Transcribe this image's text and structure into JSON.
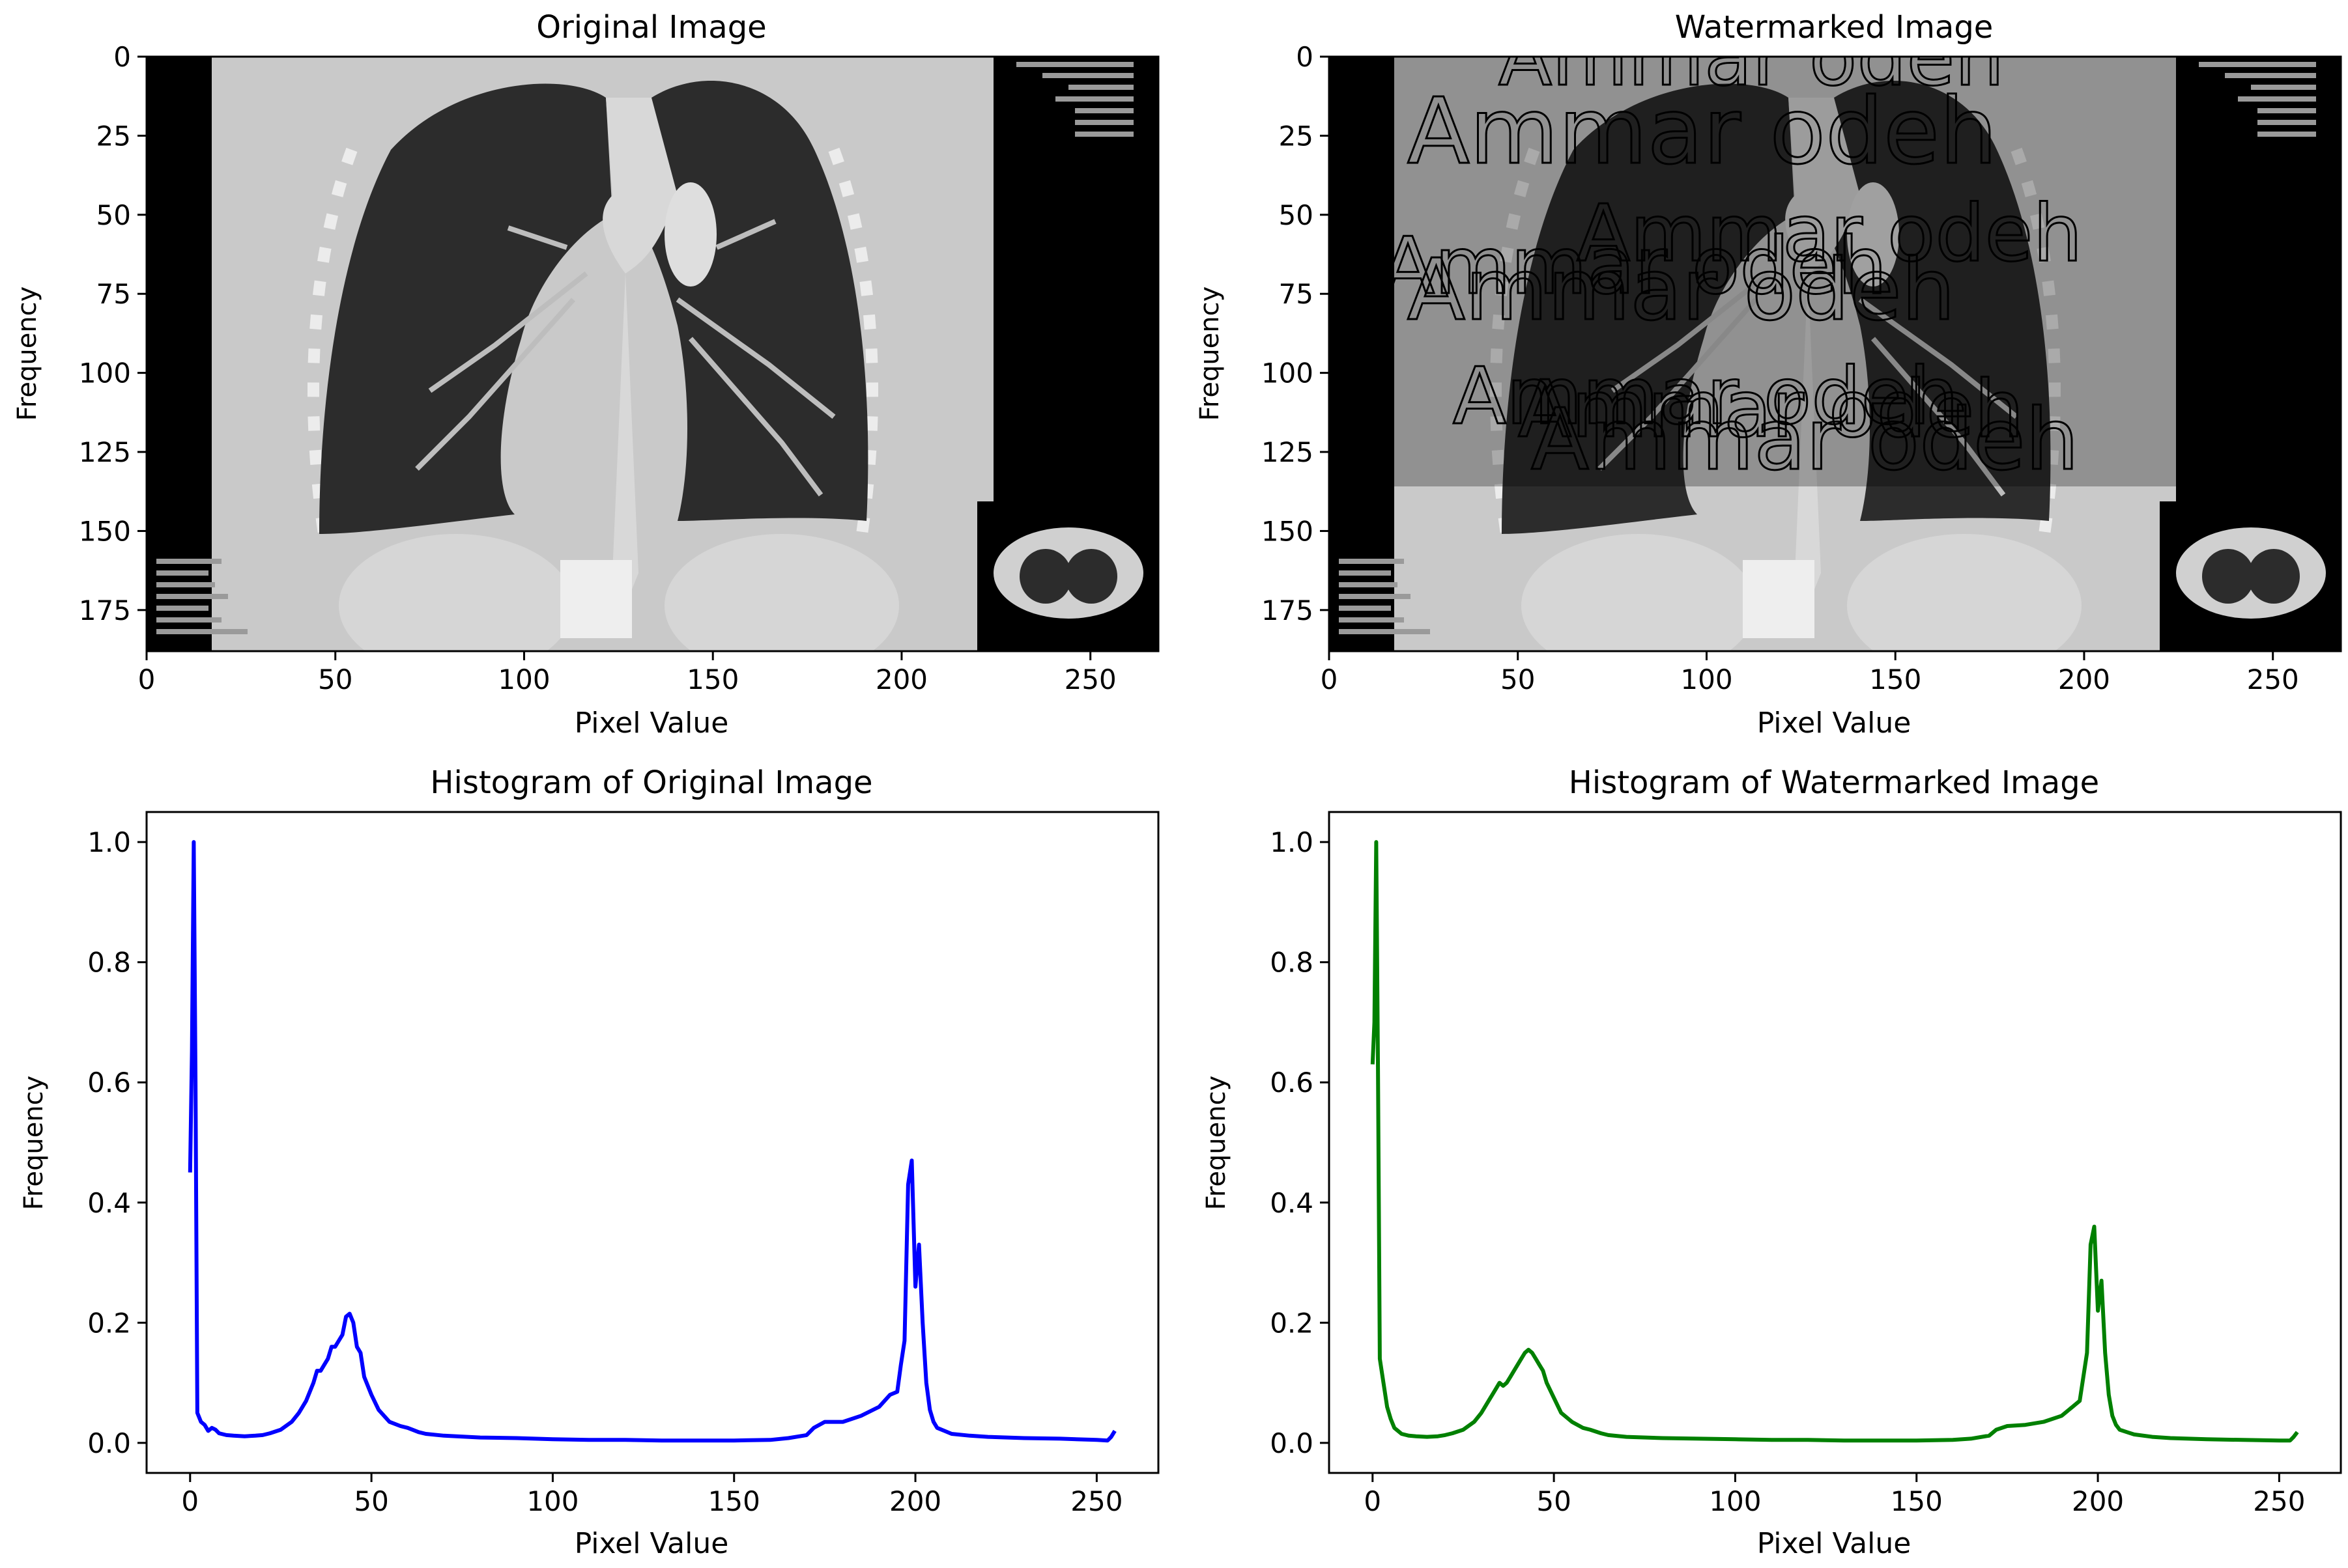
{
  "chart_data": [
    {
      "type": "image",
      "title": "Original Image",
      "xlabel": "Pixel Value",
      "ylabel": "Frequency",
      "xlim": [
        0,
        268
      ],
      "ylim": [
        188,
        0
      ],
      "xticks": [
        0,
        50,
        100,
        150,
        200,
        250
      ],
      "yticks": [
        0,
        25,
        50,
        75,
        100,
        125,
        150,
        175
      ],
      "watermark_text": ""
    },
    {
      "type": "image",
      "title": "Watermarked Image",
      "xlabel": "Pixel Value",
      "ylabel": "Frequency",
      "xlim": [
        0,
        268
      ],
      "ylim": [
        188,
        0
      ],
      "xticks": [
        0,
        50,
        100,
        150,
        200,
        250
      ],
      "yticks": [
        0,
        25,
        50,
        75,
        100,
        125,
        150,
        175
      ],
      "watermark_text": "Ammar odeh"
    },
    {
      "type": "line",
      "title": "Histogram of Original Image",
      "xlabel": "Pixel Value",
      "ylabel": "Frequency",
      "xlim": [
        -12,
        267
      ],
      "ylim": [
        -0.05,
        1.05
      ],
      "xticks": [
        0,
        50,
        100,
        150,
        200,
        250
      ],
      "yticks": [
        0.0,
        0.2,
        0.4,
        0.6,
        0.8,
        1.0
      ],
      "color": "#0000ff",
      "series": [
        {
          "x": [
            0,
            0.5,
            1,
            1.5,
            2,
            3,
            4,
            5,
            6,
            7,
            8,
            10,
            12,
            15,
            18,
            20,
            22,
            25,
            28,
            30,
            32,
            34,
            35,
            36,
            37,
            38,
            39,
            40,
            41,
            42,
            43,
            44,
            45,
            46,
            47,
            48,
            50,
            52,
            55,
            58,
            60,
            63,
            65,
            70,
            80,
            90,
            100,
            110,
            120,
            130,
            140,
            150,
            160,
            165,
            170,
            172,
            175,
            180,
            185,
            190,
            193,
            195,
            196,
            197,
            198,
            199,
            200,
            201,
            202,
            203,
            204,
            205,
            206,
            208,
            210,
            215,
            220,
            230,
            240,
            250,
            253,
            254,
            255
          ],
          "y": [
            0.45,
            0.65,
            1.0,
            0.6,
            0.05,
            0.035,
            0.03,
            0.02,
            0.025,
            0.022,
            0.016,
            0.013,
            0.012,
            0.011,
            0.012,
            0.013,
            0.016,
            0.022,
            0.035,
            0.05,
            0.07,
            0.1,
            0.12,
            0.12,
            0.13,
            0.14,
            0.16,
            0.16,
            0.17,
            0.18,
            0.21,
            0.215,
            0.2,
            0.16,
            0.15,
            0.11,
            0.08,
            0.055,
            0.035,
            0.028,
            0.025,
            0.018,
            0.015,
            0.012,
            0.009,
            0.008,
            0.006,
            0.005,
            0.005,
            0.004,
            0.004,
            0.004,
            0.005,
            0.008,
            0.013,
            0.025,
            0.035,
            0.035,
            0.045,
            0.06,
            0.08,
            0.085,
            0.13,
            0.17,
            0.43,
            0.47,
            0.26,
            0.33,
            0.2,
            0.1,
            0.055,
            0.035,
            0.025,
            0.02,
            0.015,
            0.012,
            0.01,
            0.008,
            0.007,
            0.005,
            0.004,
            0.01,
            0.02
          ]
        }
      ]
    },
    {
      "type": "line",
      "title": "Histogram of Watermarked Image",
      "xlabel": "Pixel Value",
      "ylabel": "Frequency",
      "xlim": [
        -12,
        267
      ],
      "ylim": [
        -0.05,
        1.05
      ],
      "xticks": [
        0,
        50,
        100,
        150,
        200,
        250
      ],
      "yticks": [
        0.0,
        0.2,
        0.4,
        0.6,
        0.8,
        1.0
      ],
      "color": "#008000",
      "series": [
        {
          "x": [
            0,
            0.5,
            1,
            1.5,
            2,
            3,
            4,
            5,
            6,
            7,
            8,
            10,
            12,
            15,
            18,
            20,
            22,
            25,
            28,
            30,
            32,
            34,
            35,
            36,
            37,
            38,
            39,
            40,
            41,
            42,
            43,
            44,
            45,
            46,
            47,
            48,
            50,
            52,
            55,
            58,
            60,
            63,
            65,
            70,
            80,
            90,
            100,
            110,
            120,
            130,
            140,
            150,
            160,
            165,
            170,
            172,
            175,
            180,
            185,
            190,
            193,
            195,
            196,
            197,
            198,
            199,
            200,
            201,
            202,
            203,
            204,
            205,
            206,
            208,
            210,
            215,
            220,
            230,
            240,
            250,
            253,
            254,
            255
          ],
          "y": [
            0.63,
            0.7,
            1.0,
            0.62,
            0.14,
            0.1,
            0.06,
            0.04,
            0.025,
            0.02,
            0.015,
            0.012,
            0.011,
            0.01,
            0.011,
            0.013,
            0.016,
            0.022,
            0.035,
            0.05,
            0.07,
            0.09,
            0.1,
            0.095,
            0.1,
            0.11,
            0.12,
            0.13,
            0.14,
            0.15,
            0.155,
            0.15,
            0.14,
            0.13,
            0.12,
            0.1,
            0.075,
            0.05,
            0.035,
            0.025,
            0.022,
            0.016,
            0.013,
            0.01,
            0.008,
            0.007,
            0.006,
            0.005,
            0.005,
            0.004,
            0.004,
            0.004,
            0.005,
            0.007,
            0.012,
            0.022,
            0.028,
            0.03,
            0.035,
            0.045,
            0.06,
            0.07,
            0.11,
            0.15,
            0.33,
            0.36,
            0.22,
            0.27,
            0.15,
            0.08,
            0.045,
            0.03,
            0.022,
            0.018,
            0.014,
            0.01,
            0.008,
            0.006,
            0.005,
            0.004,
            0.004,
            0.01,
            0.018
          ]
        }
      ]
    }
  ]
}
